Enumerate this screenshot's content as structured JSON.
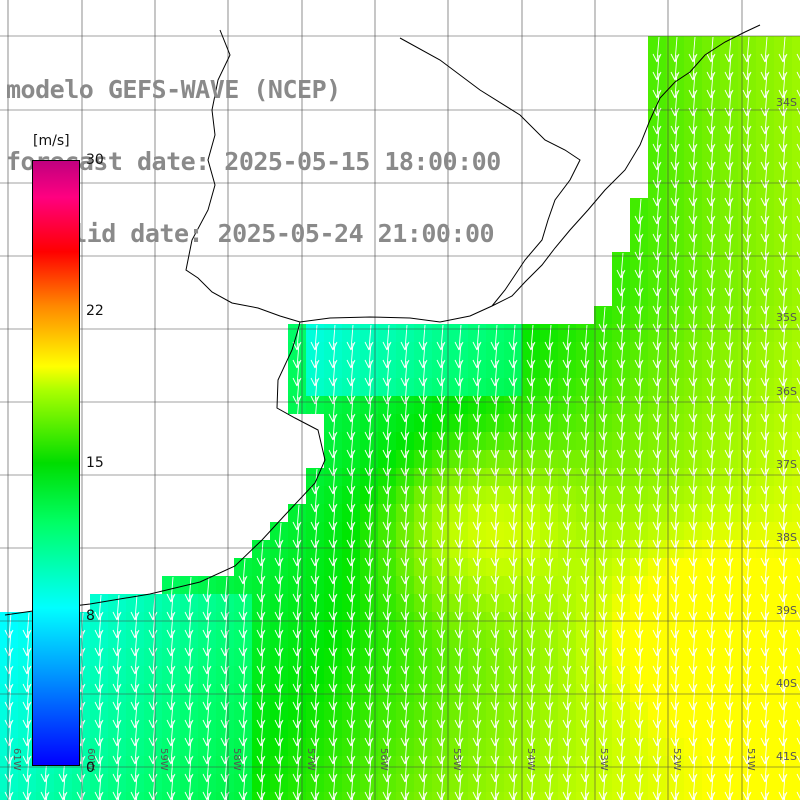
{
  "title": {
    "model": "modelo GEFS-WAVE (NCEP)",
    "forecast": "forecast date: 2025-05-15 18:00:00",
    "valid": "valid date: 2025-05-24 21:00:00"
  },
  "colorbar": {
    "unit": "[m/s]",
    "ticks": [
      "30",
      "22",
      "15",
      "8",
      "0"
    ],
    "colors": [
      "#0000ff",
      "#00a0ff",
      "#00ffff",
      "#00ff66",
      "#00dd00",
      "#aaff00",
      "#ffff00",
      "#ff8800",
      "#ff0000",
      "#c0007f"
    ]
  },
  "grid": {
    "lat_labels": [
      "34S",
      "35S",
      "36S",
      "37S",
      "38S",
      "39S",
      "40S",
      "41S"
    ],
    "lon_labels": [
      "61W",
      "60W",
      "59W",
      "58W",
      "57W",
      "56W",
      "55W",
      "54W",
      "53W",
      "52W",
      "51W"
    ]
  },
  "legend_speeds": {
    "min": 0,
    "max": 30
  },
  "field": {
    "type": "wind-speed-shaded-with-arrows",
    "arrow_direction": "from north-northeast toward south-southwest"
  }
}
